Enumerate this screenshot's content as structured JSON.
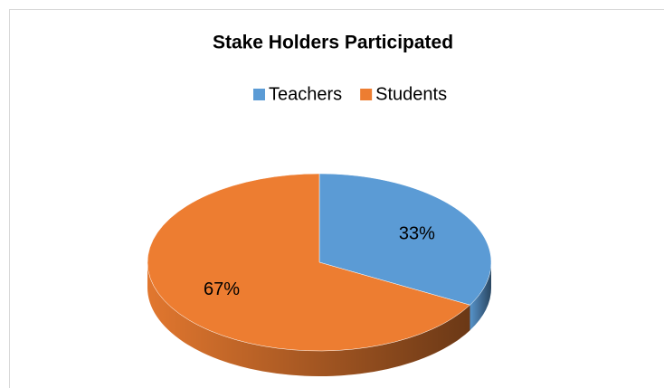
{
  "chart_data": {
    "type": "pie",
    "title": "Stake Holders Participated",
    "categories": [
      "Teachers",
      "Students"
    ],
    "values": [
      33,
      67
    ],
    "value_labels": [
      "33%",
      "67%"
    ],
    "colors": [
      "#5b9bd5",
      "#ed7d31"
    ],
    "legend": "top"
  }
}
